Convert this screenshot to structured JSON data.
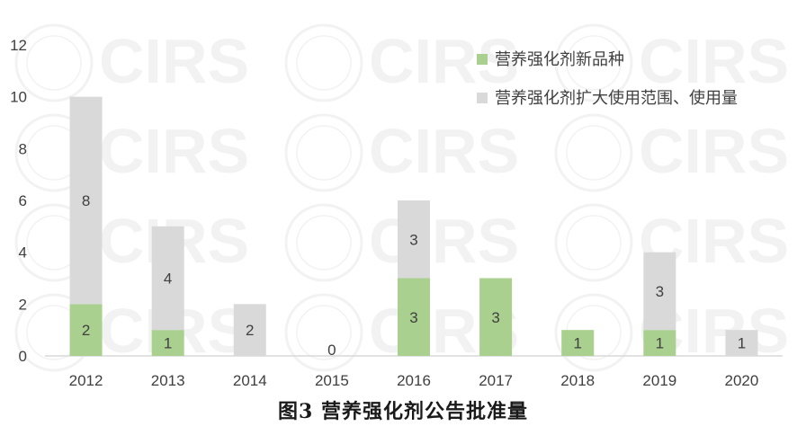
{
  "caption": "图3 营养强化剂公告批准量",
  "chart_data": {
    "type": "bar",
    "stacked": true,
    "categories": [
      "2012",
      "2013",
      "2014",
      "2015",
      "2016",
      "2017",
      "2018",
      "2019",
      "2020"
    ],
    "series": [
      {
        "name": "营养强化剂新品种",
        "color": "#a9d08e",
        "values": [
          2,
          1,
          0,
          0,
          3,
          3,
          1,
          1,
          0
        ],
        "labels": [
          "2",
          "1",
          "",
          "",
          "3",
          "3",
          "1",
          "1",
          ""
        ]
      },
      {
        "name": "营养强化剂扩大使用范围、使用量",
        "color": "#d9d9d9",
        "values": [
          8,
          4,
          2,
          0,
          3,
          0,
          0,
          3,
          1
        ],
        "labels": [
          "8",
          "4",
          "2",
          "",
          "3",
          "",
          "",
          "3",
          "1"
        ]
      }
    ],
    "zero_labels": [
      "",
      "",
      "",
      "0",
      "",
      "",
      "",
      "",
      ""
    ],
    "ylim": [
      0,
      12
    ],
    "yticks": [
      "0",
      "2",
      "4",
      "6",
      "8",
      "10",
      "12"
    ],
    "grid": false,
    "legend_position": "top-right",
    "axis_color": "#d9d9d9",
    "watermark": "CIRS"
  }
}
